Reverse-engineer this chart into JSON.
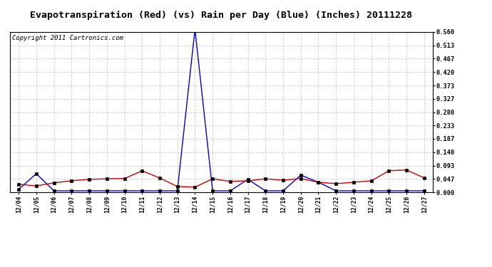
{
  "title": "Evapotranspiration (Red) (vs) Rain per Day (Blue) (Inches) 20111228",
  "copyright": "Copyright 2011 Cartronics.com",
  "x_labels": [
    "12/04",
    "12/05",
    "12/06",
    "12/07",
    "12/08",
    "12/09",
    "12/10",
    "12/11",
    "12/12",
    "12/13",
    "12/14",
    "12/15",
    "12/16",
    "12/17",
    "12/18",
    "12/19",
    "12/20",
    "12/21",
    "12/22",
    "12/23",
    "12/24",
    "12/25",
    "12/26",
    "12/27"
  ],
  "red_values": [
    0.028,
    0.022,
    0.033,
    0.04,
    0.045,
    0.047,
    0.048,
    0.075,
    0.05,
    0.02,
    0.018,
    0.047,
    0.038,
    0.04,
    0.047,
    0.042,
    0.048,
    0.035,
    0.03,
    0.035,
    0.04,
    0.075,
    0.078,
    0.05
  ],
  "blue_values": [
    0.01,
    0.065,
    0.005,
    0.005,
    0.005,
    0.005,
    0.005,
    0.005,
    0.005,
    0.005,
    0.57,
    0.005,
    0.005,
    0.045,
    0.005,
    0.005,
    0.06,
    0.035,
    0.005,
    0.005,
    0.005,
    0.005,
    0.005,
    0.005
  ],
  "y_ticks": [
    0.0,
    0.047,
    0.093,
    0.14,
    0.187,
    0.233,
    0.28,
    0.327,
    0.373,
    0.42,
    0.467,
    0.513,
    0.56
  ],
  "y_min": 0.0,
  "y_max": 0.56,
  "red_color": "#cc0000",
  "blue_color": "#0000cc",
  "bg_color": "#ffffff",
  "plot_bg_color": "#ffffff",
  "grid_color": "#cccccc",
  "title_fontsize": 9.5,
  "copyright_fontsize": 6.5
}
